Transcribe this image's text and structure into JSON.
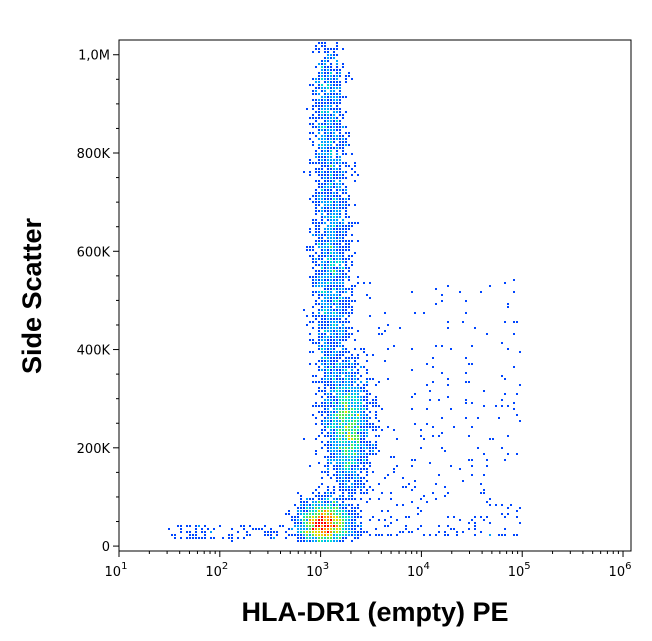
{
  "chart_data": {
    "type": "scatter",
    "style": "flow-cytometry density dot plot",
    "xlabel": "HLA-DR1 (empty) PE",
    "ylabel": "Side Scatter",
    "x_scale": "log",
    "xlim": [
      10,
      1200000
    ],
    "ylim": [
      -10000,
      1030000
    ],
    "x_ticks": [
      {
        "value": 10,
        "base": "10",
        "exp": "1"
      },
      {
        "value": 100,
        "base": "10",
        "exp": "2"
      },
      {
        "value": 1000,
        "base": "10",
        "exp": "3"
      },
      {
        "value": 10000,
        "base": "10",
        "exp": "4"
      },
      {
        "value": 100000,
        "base": "10",
        "exp": "5"
      },
      {
        "value": 1000000,
        "base": "10",
        "exp": "6"
      }
    ],
    "y_ticks": [
      {
        "value": 0,
        "label": "0"
      },
      {
        "value": 200000,
        "label": "200K"
      },
      {
        "value": 400000,
        "label": "400K"
      },
      {
        "value": 600000,
        "label": "600K"
      },
      {
        "value": 800000,
        "label": "800K"
      },
      {
        "value": 1000000,
        "label": "1,0M"
      }
    ],
    "grid": false,
    "legend": "none",
    "colormap": [
      "#0000c8",
      "#0046ff",
      "#00a0ff",
      "#00dcc8",
      "#50e650",
      "#dcdc00",
      "#ff8c00",
      "#ff0000"
    ],
    "populations": [
      {
        "x_center": 1100,
        "y_center": 45000,
        "x_spread_decades": 0.12,
        "y_spread": 22000,
        "density": "high"
      },
      {
        "x_center": 1300,
        "y_center": 560000,
        "x_spread_decades": 0.09,
        "y_spread": 170000,
        "density": "medium"
      },
      {
        "x_center": 1900,
        "y_center": 240000,
        "x_spread_decades": 0.1,
        "y_spread": 60000,
        "density": "medium"
      },
      {
        "x_center": 1200,
        "y_center": 880000,
        "x_spread_decades": 0.07,
        "y_spread": 90000,
        "density": "low"
      }
    ]
  }
}
